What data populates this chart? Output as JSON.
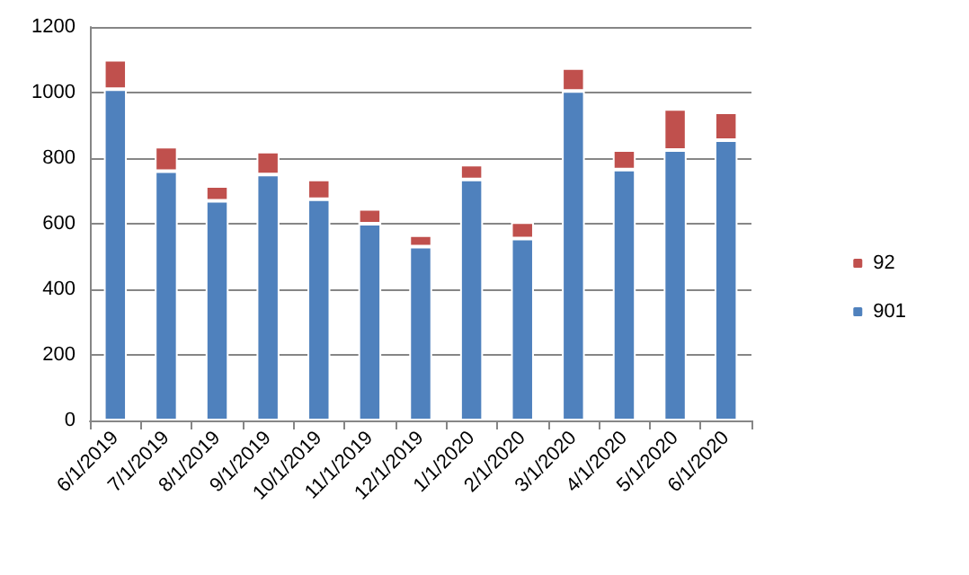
{
  "chart_data": {
    "type": "bar",
    "stacked": true,
    "categories": [
      "6/1/2019",
      "7/1/2019",
      "8/1/2019",
      "9/1/2019",
      "10/1/2019",
      "11/1/2019",
      "12/1/2019",
      "1/1/2020",
      "2/1/2020",
      "3/1/2020",
      "4/1/2020",
      "5/1/2020",
      "6/1/2020"
    ],
    "series": [
      {
        "name": "901",
        "color": "#4f81bd",
        "values": [
          1010,
          760,
          670,
          750,
          675,
          600,
          530,
          735,
          555,
          1005,
          765,
          825,
          855
        ]
      },
      {
        "name": "92",
        "color": "#c0504d",
        "values": [
          90,
          75,
          45,
          70,
          60,
          45,
          35,
          45,
          50,
          70,
          60,
          125,
          85
        ]
      }
    ],
    "ylim": [
      0,
      1200
    ],
    "yticks": [
      0,
      200,
      400,
      600,
      800,
      1000,
      1200
    ],
    "grid": "y",
    "legend": "right"
  }
}
